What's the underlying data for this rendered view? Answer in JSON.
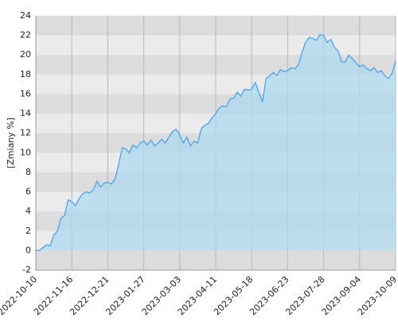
{
  "chart_data": {
    "type": "area",
    "y_label": "[Zmiany %]",
    "categories": [
      "2022-10-10",
      null,
      null,
      null,
      null,
      null,
      null,
      null,
      null,
      null,
      "2022-11-16",
      null,
      null,
      null,
      null,
      null,
      null,
      null,
      null,
      null,
      "2022-12-21",
      null,
      null,
      null,
      null,
      null,
      null,
      null,
      null,
      null,
      "2023-01-27",
      null,
      null,
      null,
      null,
      null,
      null,
      null,
      null,
      null,
      "2023-03-03",
      null,
      null,
      null,
      null,
      null,
      null,
      null,
      null,
      null,
      "2023-04-11",
      null,
      null,
      null,
      null,
      null,
      null,
      null,
      null,
      null,
      "2023-05-18",
      null,
      null,
      null,
      null,
      null,
      null,
      null,
      null,
      null,
      "2023-06-23",
      null,
      null,
      null,
      null,
      null,
      null,
      null,
      null,
      null,
      "2023-07-28",
      null,
      null,
      null,
      null,
      null,
      null,
      null,
      null,
      null,
      "2023-09-04",
      null,
      null,
      null,
      null,
      null,
      null,
      null,
      null,
      null,
      "2023-10-09"
    ],
    "values": [
      0,
      0,
      0.3,
      0.6,
      0.5,
      1.6,
      2.0,
      3.3,
      3.6,
      5.2,
      5.0,
      4.6,
      5.3,
      5.8,
      6.0,
      5.9,
      6.2,
      7.1,
      6.5,
      6.9,
      7.0,
      6.8,
      7.3,
      8.8,
      10.5,
      10.4,
      10.0,
      10.8,
      10.5,
      11.0,
      11.2,
      10.8,
      11.3,
      10.7,
      11.0,
      11.4,
      11.0,
      11.6,
      12.2,
      12.4,
      11.8,
      11.0,
      11.6,
      10.7,
      11.2,
      11.0,
      12.5,
      12.8,
      13.0,
      13.6,
      14.0,
      14.6,
      14.8,
      14.7,
      15.5,
      15.6,
      16.2,
      15.8,
      16.5,
      16.4,
      16.5,
      17.2,
      16.2,
      15.2,
      17.6,
      17.9,
      18.2,
      17.9,
      18.5,
      18.3,
      18.4,
      18.7,
      18.6,
      19.0,
      20.3,
      21.3,
      21.8,
      21.7,
      21.5,
      22.1,
      22.0,
      21.3,
      21.6,
      20.8,
      20.4,
      19.3,
      19.3,
      20.0,
      19.6,
      19.2,
      18.8,
      19.0,
      18.6,
      18.4,
      18.7,
      18.2,
      18.4,
      17.9,
      17.6,
      18.1,
      19.4
    ],
    "color": "#4da3e8",
    "fill_color": "#a9d9f0",
    "ylim": [
      -2,
      24
    ],
    "yticks": [
      -2,
      0,
      2,
      4,
      6,
      8,
      10,
      12,
      14,
      16,
      18,
      20,
      22,
      24
    ],
    "grid": true
  }
}
